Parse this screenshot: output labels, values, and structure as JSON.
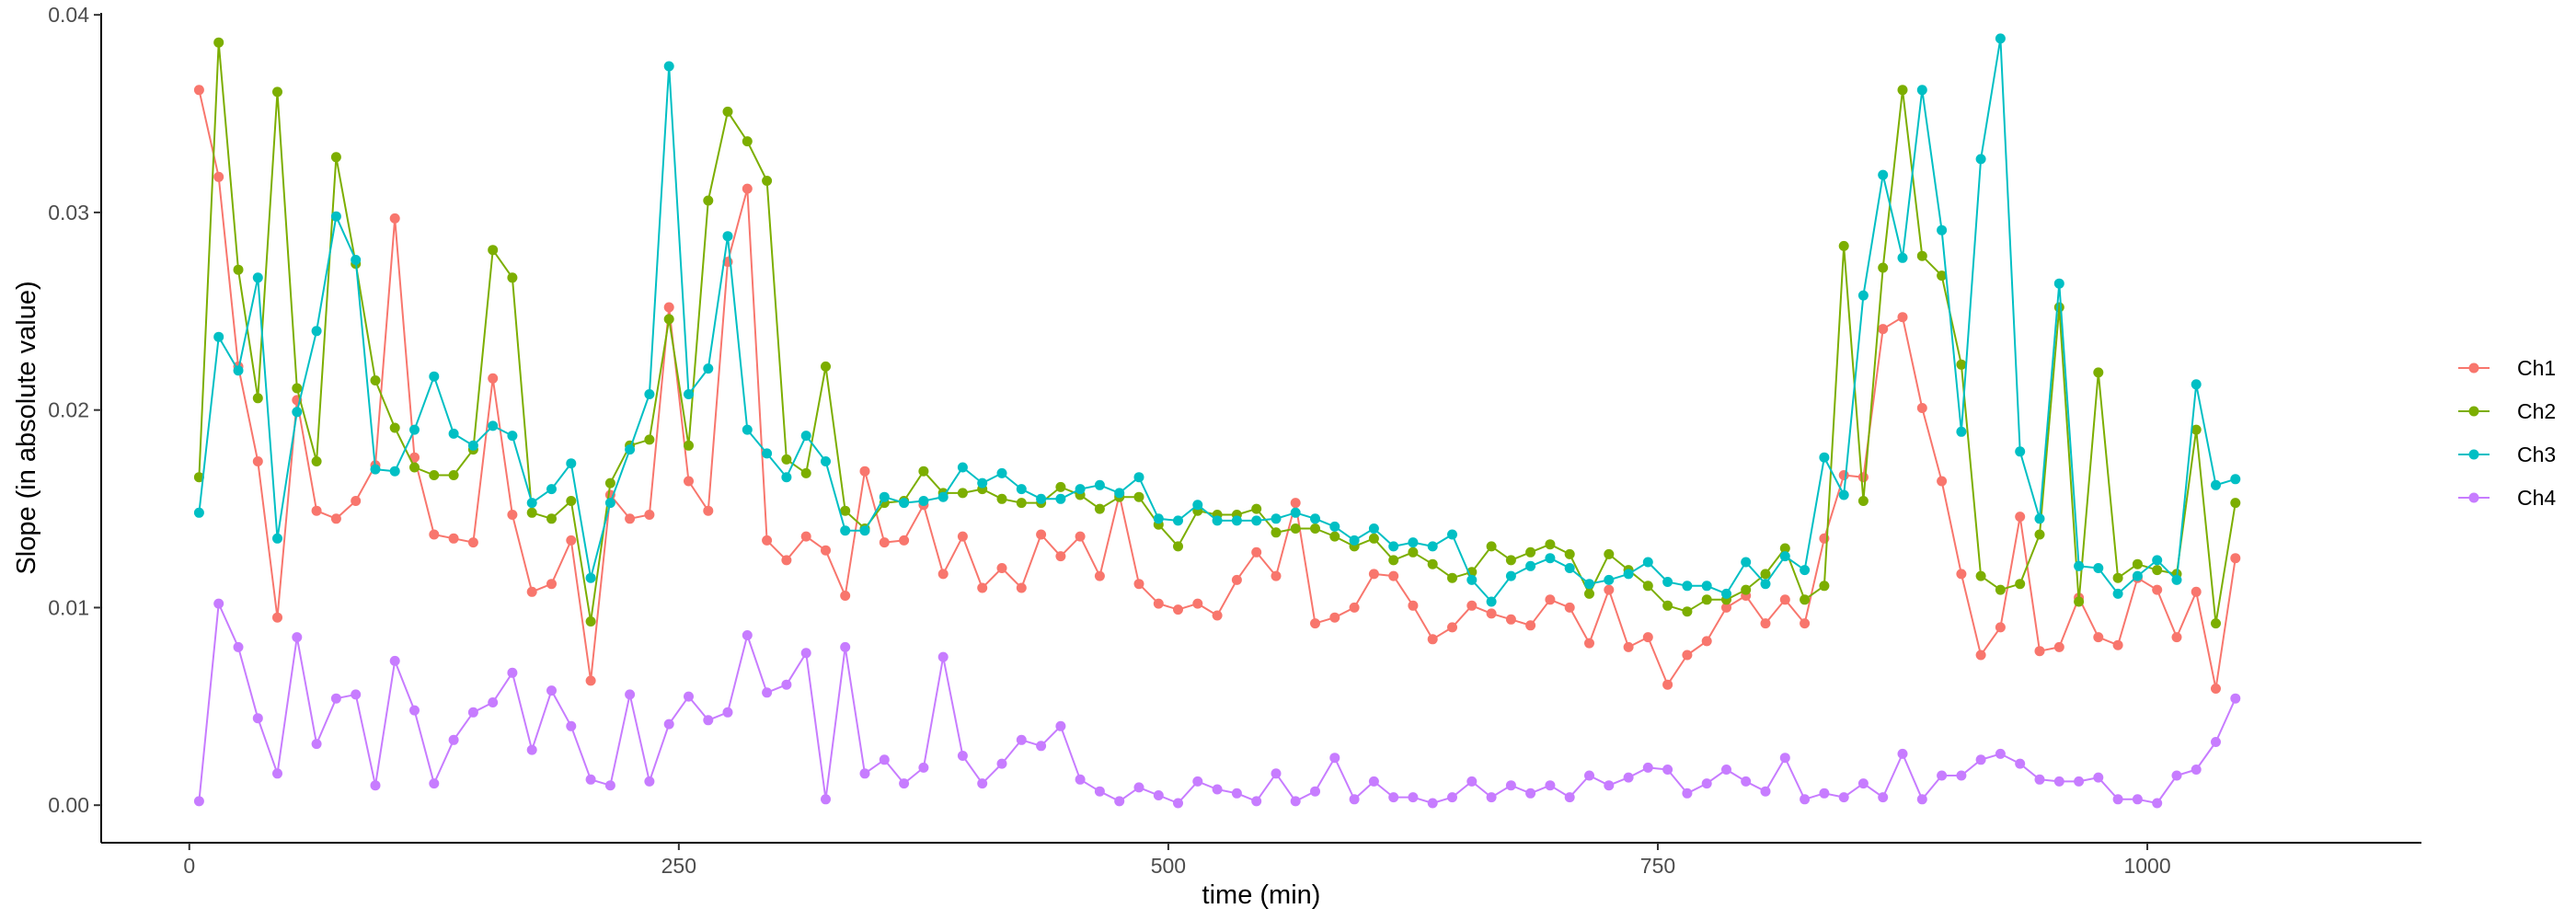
{
  "chart_data": {
    "type": "line",
    "xlabel": "time (min)",
    "ylabel": "Slope (in absolute value)",
    "xlim": [
      -45,
      1140
    ],
    "ylim": [
      -0.0019,
      0.0401
    ],
    "x_ticks": [
      0,
      250,
      500,
      750,
      1000
    ],
    "x_tick_labels": [
      "0",
      "250",
      "500",
      "750",
      "1000"
    ],
    "y_ticks": [
      0.0,
      0.01,
      0.02,
      0.03,
      0.04
    ],
    "y_tick_labels": [
      "0.00",
      "0.01",
      "0.02",
      "0.03",
      "0.04"
    ],
    "grid": false,
    "legend_position": "right",
    "x": [
      5,
      15,
      25,
      35,
      45,
      55,
      65,
      75,
      85,
      95,
      105,
      115,
      125,
      135,
      145,
      155,
      165,
      175,
      185,
      195,
      205,
      215,
      225,
      235,
      245,
      255,
      265,
      275,
      285,
      295,
      305,
      315,
      325,
      335,
      345,
      355,
      365,
      375,
      385,
      395,
      405,
      415,
      425,
      435,
      445,
      455,
      465,
      475,
      485,
      495,
      505,
      515,
      525,
      535,
      545,
      555,
      565,
      575,
      585,
      595,
      605,
      615,
      625,
      635,
      645,
      655,
      665,
      675,
      685,
      695,
      705,
      715,
      725,
      735,
      745,
      755,
      765,
      775,
      785,
      795,
      805,
      815,
      825,
      835,
      845,
      855,
      865,
      875,
      885,
      895,
      905,
      915,
      925,
      935,
      945,
      955,
      965,
      975,
      985,
      995,
      1005,
      1015,
      1025,
      1035,
      1045
    ],
    "series": [
      {
        "name": "Ch1",
        "color": "#F8766D",
        "values": [
          0.0362,
          0.0318,
          0.0222,
          0.0174,
          0.0095,
          0.0205,
          0.0149,
          0.0145,
          0.0154,
          0.0172,
          0.0297,
          0.0176,
          0.0137,
          0.0135,
          0.0133,
          0.0216,
          0.0147,
          0.0108,
          0.0112,
          0.0134,
          0.0063,
          0.0157,
          0.0145,
          0.0147,
          0.0252,
          0.0164,
          0.0149,
          0.0275,
          0.0312,
          0.0134,
          0.0124,
          0.0136,
          0.0129,
          0.0106,
          0.0169,
          0.0133,
          0.0134,
          0.0152,
          0.0117,
          0.0136,
          0.011,
          0.012,
          0.011,
          0.0137,
          0.0126,
          0.0136,
          0.0116,
          0.0157,
          0.0112,
          0.0102,
          0.0099,
          0.0102,
          0.0096,
          0.0114,
          0.0128,
          0.0116,
          0.0153,
          0.0092,
          0.0095,
          0.01,
          0.0117,
          0.0116,
          0.0101,
          0.0084,
          0.009,
          0.0101,
          0.0097,
          0.0094,
          0.0091,
          0.0104,
          0.01,
          0.0082,
          0.0109,
          0.008,
          0.0085,
          0.0061,
          0.0076,
          0.0083,
          0.01,
          0.0106,
          0.0092,
          0.0104,
          0.0092,
          0.0135,
          0.0167,
          0.0166,
          0.0241,
          0.0247,
          0.0201,
          0.0164,
          0.0117,
          0.0076,
          0.009,
          0.0146,
          0.0078,
          0.008,
          0.0105,
          0.0085,
          0.0081,
          0.0115,
          0.0109,
          0.0085,
          0.0108,
          0.0059,
          0.0125
        ]
      },
      {
        "name": "Ch2",
        "color": "#7CAE00",
        "values": [
          0.0166,
          0.0386,
          0.0271,
          0.0206,
          0.0361,
          0.0211,
          0.0174,
          0.0328,
          0.0274,
          0.0215,
          0.0191,
          0.0171,
          0.0167,
          0.0167,
          0.018,
          0.0281,
          0.0267,
          0.0148,
          0.0145,
          0.0154,
          0.0093,
          0.0163,
          0.0182,
          0.0185,
          0.0246,
          0.0182,
          0.0306,
          0.0351,
          0.0336,
          0.0316,
          0.0175,
          0.0168,
          0.0222,
          0.0149,
          0.014,
          0.0153,
          0.0154,
          0.0169,
          0.0158,
          0.0158,
          0.016,
          0.0155,
          0.0153,
          0.0153,
          0.0161,
          0.0157,
          0.015,
          0.0156,
          0.0156,
          0.0142,
          0.0131,
          0.0149,
          0.0147,
          0.0147,
          0.015,
          0.0138,
          0.014,
          0.014,
          0.0136,
          0.0131,
          0.0135,
          0.0124,
          0.0128,
          0.0122,
          0.0115,
          0.0118,
          0.0131,
          0.0124,
          0.0128,
          0.0132,
          0.0127,
          0.0107,
          0.0127,
          0.0119,
          0.0111,
          0.0101,
          0.0098,
          0.0104,
          0.0104,
          0.0109,
          0.0117,
          0.013,
          0.0104,
          0.0111,
          0.0283,
          0.0154,
          0.0272,
          0.0362,
          0.0278,
          0.0268,
          0.0223,
          0.0116,
          0.0109,
          0.0112,
          0.0137,
          0.0252,
          0.0103,
          0.0219,
          0.0115,
          0.0122,
          0.0119,
          0.0117,
          0.019,
          0.0092,
          0.0153
        ]
      },
      {
        "name": "Ch3",
        "color": "#00BFC4",
        "values": [
          0.0148,
          0.0237,
          0.022,
          0.0267,
          0.0135,
          0.0199,
          0.024,
          0.0298,
          0.0276,
          0.017,
          0.0169,
          0.019,
          0.0217,
          0.0188,
          0.0182,
          0.0192,
          0.0187,
          0.0153,
          0.016,
          0.0173,
          0.0115,
          0.0153,
          0.018,
          0.0208,
          0.0374,
          0.0208,
          0.0221,
          0.0288,
          0.019,
          0.0178,
          0.0166,
          0.0187,
          0.0174,
          0.0139,
          0.0139,
          0.0156,
          0.0153,
          0.0154,
          0.0156,
          0.0171,
          0.0163,
          0.0168,
          0.016,
          0.0155,
          0.0155,
          0.016,
          0.0162,
          0.0158,
          0.0166,
          0.0145,
          0.0144,
          0.0152,
          0.0144,
          0.0144,
          0.0144,
          0.0145,
          0.0148,
          0.0145,
          0.0141,
          0.0134,
          0.014,
          0.0131,
          0.0133,
          0.0131,
          0.0137,
          0.0114,
          0.0103,
          0.0116,
          0.0121,
          0.0125,
          0.012,
          0.0112,
          0.0114,
          0.0117,
          0.0123,
          0.0113,
          0.0111,
          0.0111,
          0.0107,
          0.0123,
          0.0112,
          0.0126,
          0.0119,
          0.0176,
          0.0157,
          0.0258,
          0.0319,
          0.0277,
          0.0362,
          0.0291,
          0.0189,
          0.0327,
          0.0388,
          0.0179,
          0.0145,
          0.0264,
          0.0121,
          0.012,
          0.0107,
          0.0116,
          0.0124,
          0.0114,
          0.0213,
          0.0162,
          0.0165
        ]
      },
      {
        "name": "Ch4",
        "color": "#C77CFF",
        "values": [
          0.0002,
          0.0102,
          0.008,
          0.0044,
          0.0016,
          0.0085,
          0.0031,
          0.0054,
          0.0056,
          0.001,
          0.0073,
          0.0048,
          0.0011,
          0.0033,
          0.0047,
          0.0052,
          0.0067,
          0.0028,
          0.0058,
          0.004,
          0.0013,
          0.001,
          0.0056,
          0.0012,
          0.0041,
          0.0055,
          0.0043,
          0.0047,
          0.0086,
          0.0057,
          0.0061,
          0.0077,
          0.0003,
          0.008,
          0.0016,
          0.0023,
          0.0011,
          0.0019,
          0.0075,
          0.0025,
          0.0011,
          0.0021,
          0.0033,
          0.003,
          0.004,
          0.0013,
          0.0007,
          0.0002,
          0.0009,
          0.0005,
          0.0001,
          0.0012,
          0.0008,
          0.0006,
          0.0002,
          0.0016,
          0.0002,
          0.0007,
          0.0024,
          0.0003,
          0.0012,
          0.0004,
          0.0004,
          0.0001,
          0.0004,
          0.0012,
          0.0004,
          0.001,
          0.0006,
          0.001,
          0.0004,
          0.0015,
          0.001,
          0.0014,
          0.0019,
          0.0018,
          0.0006,
          0.0011,
          0.0018,
          0.0012,
          0.0007,
          0.0024,
          0.0003,
          0.0006,
          0.0004,
          0.0011,
          0.0004,
          0.0026,
          0.0003,
          0.0015,
          0.0015,
          0.0023,
          0.0026,
          0.0021,
          0.0013,
          0.0012,
          0.0012,
          0.0014,
          0.0003,
          0.0003,
          0.0001,
          0.0015,
          0.0018,
          0.0032,
          0.0054
        ]
      }
    ]
  }
}
